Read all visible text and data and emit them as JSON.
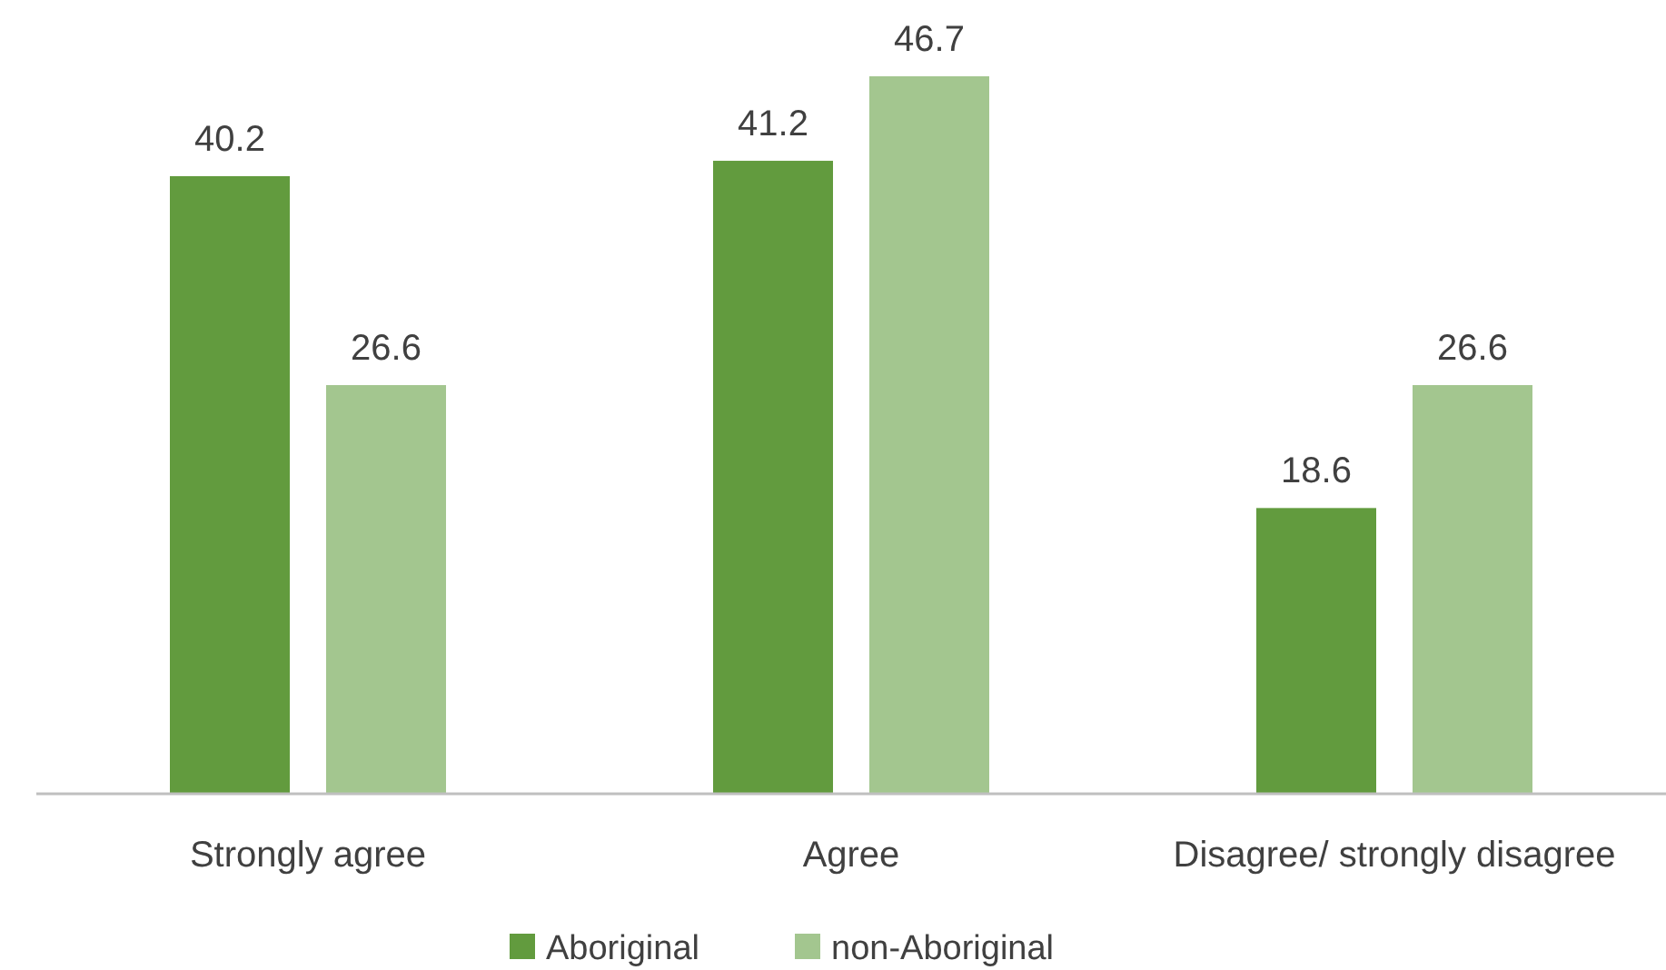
{
  "chart_data": {
    "type": "bar",
    "categories": [
      "Strongly agree",
      "Agree",
      "Disagree/ strongly disagree"
    ],
    "series": [
      {
        "name": "Aboriginal",
        "color": "#629b3e",
        "values": [
          40.2,
          41.2,
          18.6
        ]
      },
      {
        "name": "non-Aboriginal",
        "color": "#a3c68f",
        "values": [
          26.6,
          46.7,
          26.6
        ]
      }
    ],
    "data_labels": true,
    "legend": "bottom"
  }
}
